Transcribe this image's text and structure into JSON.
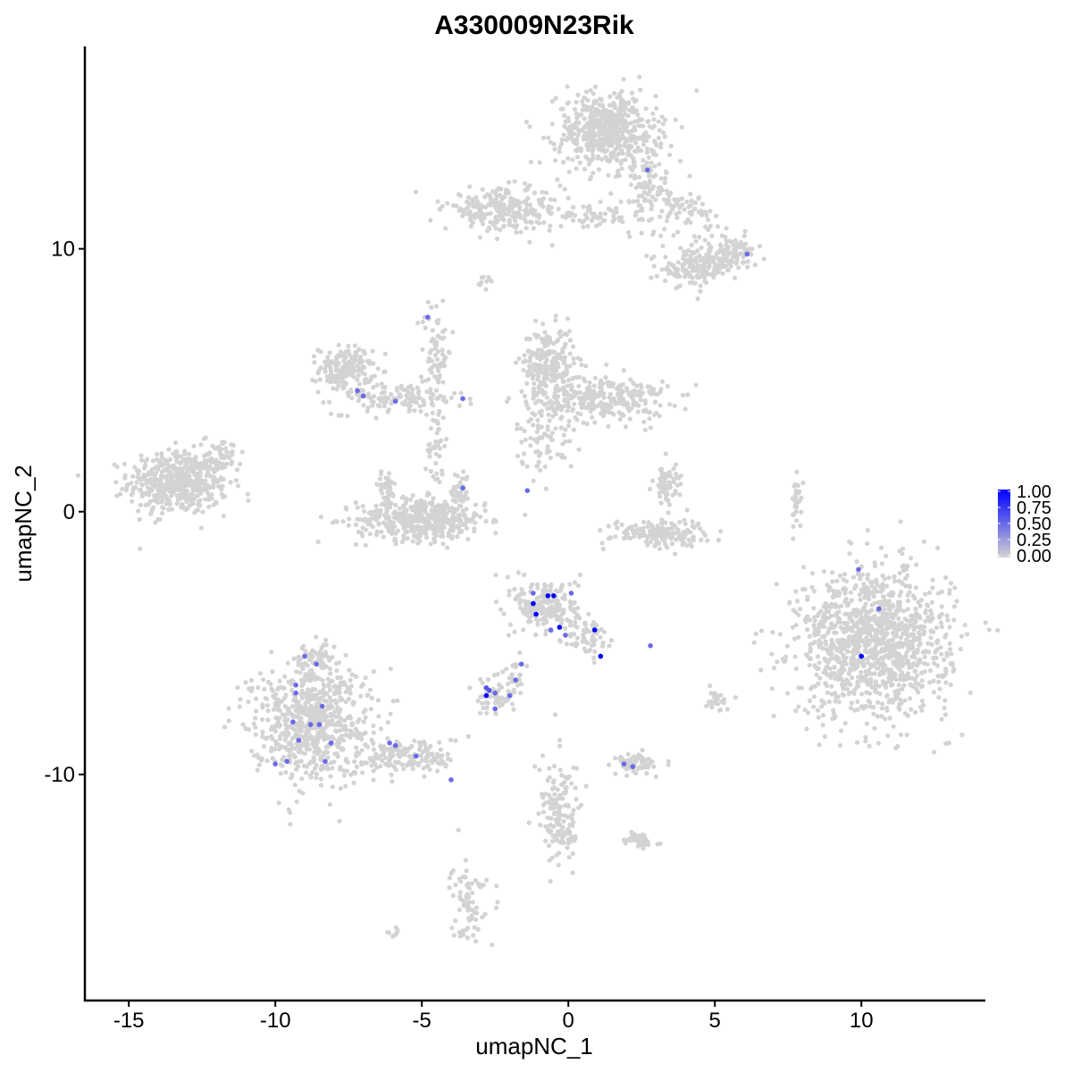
{
  "chart_data": {
    "type": "scatter",
    "title": "A330009N23Rik",
    "xlabel": "umapNC_1",
    "ylabel": "umapNC_2",
    "xlim": [
      -16.5,
      14.2
    ],
    "ylim": [
      -18.6,
      17.7
    ],
    "x_ticks": [
      -15,
      -10,
      -5,
      0,
      5,
      10
    ],
    "y_ticks": [
      -10,
      0,
      10
    ],
    "x_tick_labels": [
      "-15",
      "-10",
      "-5",
      "0",
      "5",
      "10"
    ],
    "y_tick_labels": [
      "-10",
      "0",
      "10"
    ],
    "grid": false,
    "legend": {
      "placement": "right",
      "type": "colorbar",
      "min": 0.0,
      "max": 1.0,
      "ticks": [
        "1.00",
        "0.75",
        "0.50",
        "0.25",
        "0.00"
      ],
      "color_low": "#d3d3d3",
      "color_high": "#0000ff"
    },
    "background_color": "#d3d3d3",
    "clusters": [
      {
        "cx": -13.3,
        "cy": 1.1,
        "sx": 0.85,
        "sy": 0.6,
        "n": 500
      },
      {
        "cx": -11.8,
        "cy": 2.2,
        "sx": 0.35,
        "sy": 0.35,
        "n": 40
      },
      {
        "cx": -7.6,
        "cy": 5.4,
        "sx": 0.45,
        "sy": 0.45,
        "n": 160
      },
      {
        "cx": -5.8,
        "cy": 4.3,
        "sx": 1.1,
        "sy": 0.3,
        "n": 120
      },
      {
        "cx": -4.5,
        "cy": 6.2,
        "sx": 0.25,
        "sy": 1.0,
        "n": 70
      },
      {
        "cx": -4.5,
        "cy": 2.5,
        "sx": 0.15,
        "sy": 0.9,
        "n": 40
      },
      {
        "cx": -5.0,
        "cy": -0.3,
        "sx": 1.1,
        "sy": 0.4,
        "n": 450
      },
      {
        "cx": -6.2,
        "cy": 0.8,
        "sx": 0.15,
        "sy": 0.4,
        "n": 40
      },
      {
        "cx": -3.7,
        "cy": 0.8,
        "sx": 0.15,
        "sy": 0.4,
        "n": 40
      },
      {
        "cx": -0.7,
        "cy": 5.6,
        "sx": 0.45,
        "sy": 0.7,
        "n": 230
      },
      {
        "cx": 1.2,
        "cy": 4.3,
        "sx": 1.1,
        "sy": 0.45,
        "n": 280
      },
      {
        "cx": -0.8,
        "cy": 2.9,
        "sx": 0.5,
        "sy": 0.7,
        "n": 80
      },
      {
        "cx": 1.3,
        "cy": 14.5,
        "sx": 0.85,
        "sy": 0.7,
        "n": 550
      },
      {
        "cx": 2.7,
        "cy": 12.3,
        "sx": 0.6,
        "sy": 0.9,
        "n": 110
      },
      {
        "cx": -2.2,
        "cy": 11.5,
        "sx": 1.0,
        "sy": 0.4,
        "n": 240
      },
      {
        "cx": 0.8,
        "cy": 11.2,
        "sx": 0.8,
        "sy": 0.2,
        "n": 50
      },
      {
        "cx": 4.3,
        "cy": 9.3,
        "sx": 0.55,
        "sy": 0.35,
        "n": 140
      },
      {
        "cx": 5.5,
        "cy": 9.8,
        "sx": 0.45,
        "sy": 0.35,
        "n": 110
      },
      {
        "cx": 4.0,
        "cy": 11.4,
        "sx": 0.45,
        "sy": 0.4,
        "n": 60
      },
      {
        "cx": 3.4,
        "cy": 1.0,
        "sx": 0.25,
        "sy": 0.45,
        "n": 60
      },
      {
        "cx": 3.1,
        "cy": -0.8,
        "sx": 0.8,
        "sy": 0.25,
        "n": 160
      },
      {
        "cx": 7.8,
        "cy": 0.3,
        "sx": 0.1,
        "sy": 0.5,
        "n": 30
      },
      {
        "cx": 10.4,
        "cy": -5.0,
        "sx": 1.3,
        "sy": 1.4,
        "n": 1200
      },
      {
        "cx": -0.7,
        "cy": -3.6,
        "sx": 0.55,
        "sy": 0.55,
        "n": 200
      },
      {
        "cx": 0.7,
        "cy": -4.8,
        "sx": 0.35,
        "sy": 0.4,
        "n": 60
      },
      {
        "cx": -2.5,
        "cy": -7.0,
        "sx": 0.35,
        "sy": 0.35,
        "n": 60
      },
      {
        "cx": -1.8,
        "cy": -6.2,
        "sx": 0.25,
        "sy": 0.4,
        "n": 25
      },
      {
        "cx": -8.8,
        "cy": -8.0,
        "sx": 1.0,
        "sy": 1.1,
        "n": 700
      },
      {
        "cx": -8.7,
        "cy": -5.6,
        "sx": 0.3,
        "sy": 0.3,
        "n": 60
      },
      {
        "cx": -5.4,
        "cy": -9.3,
        "sx": 0.85,
        "sy": 0.35,
        "n": 150
      },
      {
        "cx": -0.3,
        "cy": -11.5,
        "sx": 0.35,
        "sy": 1.0,
        "n": 150
      },
      {
        "cx": 2.3,
        "cy": -9.6,
        "sx": 0.35,
        "sy": 0.2,
        "n": 70
      },
      {
        "cx": 2.4,
        "cy": -12.5,
        "sx": 0.3,
        "sy": 0.15,
        "n": 40
      },
      {
        "cx": 5.0,
        "cy": -7.2,
        "sx": 0.2,
        "sy": 0.2,
        "n": 25
      },
      {
        "cx": -3.4,
        "cy": -14.8,
        "sx": 0.3,
        "sy": 0.8,
        "n": 80
      },
      {
        "cx": -6.0,
        "cy": -16.0,
        "sx": 0.1,
        "sy": 0.1,
        "n": 8
      },
      {
        "cx": -2.8,
        "cy": 8.8,
        "sx": 0.12,
        "sy": 0.12,
        "n": 10
      }
    ],
    "expressing_points": [
      {
        "x": 2.7,
        "y": 13.0,
        "v": 0.5
      },
      {
        "x": 6.1,
        "y": 9.8,
        "v": 0.5
      },
      {
        "x": -4.8,
        "y": 7.4,
        "v": 0.5
      },
      {
        "x": -7.2,
        "y": 4.6,
        "v": 0.5
      },
      {
        "x": -7.0,
        "y": 4.4,
        "v": 0.5
      },
      {
        "x": -5.9,
        "y": 4.2,
        "v": 0.5
      },
      {
        "x": -3.6,
        "y": 4.3,
        "v": 0.5
      },
      {
        "x": -3.6,
        "y": 0.9,
        "v": 0.5
      },
      {
        "x": -1.4,
        "y": 0.8,
        "v": 0.5
      },
      {
        "x": 9.9,
        "y": -2.2,
        "v": 0.5
      },
      {
        "x": 10.6,
        "y": -3.7,
        "v": 0.5
      },
      {
        "x": 10.0,
        "y": -5.5,
        "v": 1.0
      },
      {
        "x": -1.2,
        "y": -3.1,
        "v": 0.5
      },
      {
        "x": -0.7,
        "y": -3.2,
        "v": 1.0
      },
      {
        "x": -0.5,
        "y": -3.2,
        "v": 1.0
      },
      {
        "x": -1.2,
        "y": -3.5,
        "v": 1.0
      },
      {
        "x": -1.1,
        "y": -3.9,
        "v": 1.0
      },
      {
        "x": -0.3,
        "y": -4.4,
        "v": 1.0
      },
      {
        "x": 0.1,
        "y": -3.1,
        "v": 0.5
      },
      {
        "x": 0.9,
        "y": -4.5,
        "v": 1.0
      },
      {
        "x": 1.1,
        "y": -5.5,
        "v": 1.0
      },
      {
        "x": -0.6,
        "y": -4.5,
        "v": 0.5
      },
      {
        "x": -0.1,
        "y": -4.7,
        "v": 0.5
      },
      {
        "x": 2.8,
        "y": -5.1,
        "v": 0.5
      },
      {
        "x": -1.6,
        "y": -5.8,
        "v": 0.5
      },
      {
        "x": -2.8,
        "y": -6.7,
        "v": 0.6
      },
      {
        "x": -2.7,
        "y": -6.8,
        "v": 0.6
      },
      {
        "x": -2.8,
        "y": -7.0,
        "v": 1.0
      },
      {
        "x": -2.5,
        "y": -6.9,
        "v": 0.5
      },
      {
        "x": -2.0,
        "y": -7.0,
        "v": 0.5
      },
      {
        "x": -1.8,
        "y": -6.4,
        "v": 0.5
      },
      {
        "x": -2.5,
        "y": -7.5,
        "v": 0.5
      },
      {
        "x": -9.0,
        "y": -5.5,
        "v": 0.5
      },
      {
        "x": -8.6,
        "y": -5.8,
        "v": 0.5
      },
      {
        "x": -9.3,
        "y": -6.6,
        "v": 0.5
      },
      {
        "x": -9.3,
        "y": -6.9,
        "v": 0.5
      },
      {
        "x": -8.4,
        "y": -7.4,
        "v": 0.5
      },
      {
        "x": -9.4,
        "y": -8.0,
        "v": 0.5
      },
      {
        "x": -8.8,
        "y": -8.1,
        "v": 0.5
      },
      {
        "x": -8.5,
        "y": -8.1,
        "v": 0.5
      },
      {
        "x": -8.1,
        "y": -8.8,
        "v": 0.5
      },
      {
        "x": -9.2,
        "y": -8.7,
        "v": 0.5
      },
      {
        "x": -8.3,
        "y": -9.5,
        "v": 0.5
      },
      {
        "x": -9.6,
        "y": -9.5,
        "v": 0.5
      },
      {
        "x": -10.0,
        "y": -9.6,
        "v": 0.5
      },
      {
        "x": -6.1,
        "y": -8.8,
        "v": 0.5
      },
      {
        "x": -5.9,
        "y": -8.9,
        "v": 0.5
      },
      {
        "x": -5.2,
        "y": -9.3,
        "v": 0.5
      },
      {
        "x": -4.0,
        "y": -10.2,
        "v": 0.5
      },
      {
        "x": 1.9,
        "y": -9.6,
        "v": 0.5
      },
      {
        "x": 2.2,
        "y": -9.7,
        "v": 0.5
      }
    ]
  }
}
